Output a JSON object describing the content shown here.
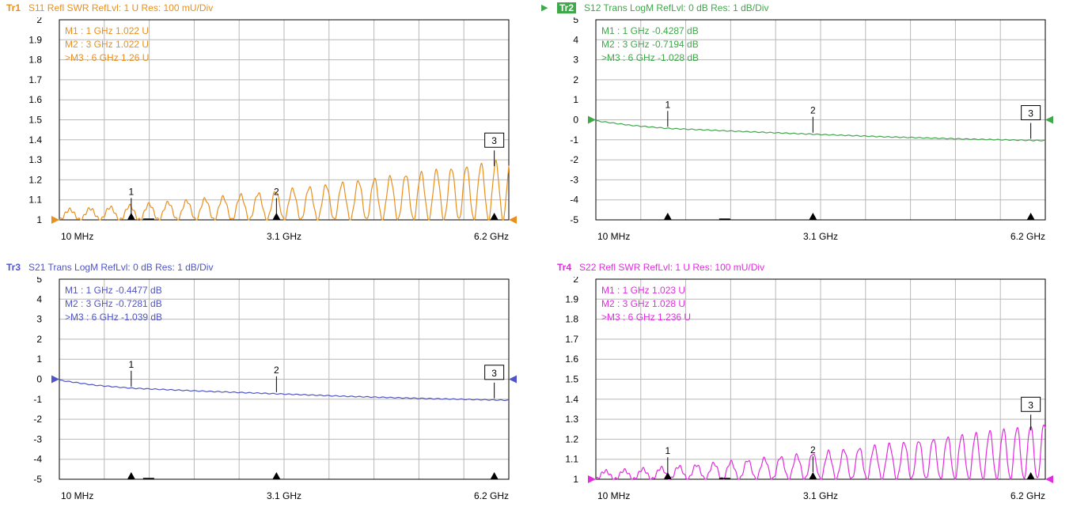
{
  "colors": {
    "grid": "#b8b8b8",
    "frame": "#000000",
    "axis_text": "#000000",
    "tr1": "#e8901e",
    "tr2": "#3fa84a",
    "tr3": "#4f54c8",
    "tr4": "#e32ce0"
  },
  "traces": [
    {
      "id": "tr1",
      "tag": "Tr1",
      "active": false,
      "header": "S11 Refl SWR RefLvl: 1  U Res: 100 mU/Div",
      "y_ticks": [
        "2",
        "1.9",
        "1.8",
        "1.7",
        "1.6",
        "1.5",
        "1.4",
        "1.3",
        "1.2",
        "1.1",
        "1"
      ],
      "x_ticks": [
        "10 MHz",
        "3.1 GHz",
        "6.2 GHz"
      ],
      "markers": [
        {
          "label": "M1  :   1 GHz  1.022  U",
          "num": "1",
          "boxed": false
        },
        {
          "label": "M2  :   3 GHz  1.022  U",
          "num": "2",
          "boxed": false
        },
        {
          "label": ">M3  :   6 GHz  1.26   U",
          "num": "3",
          "boxed": true
        }
      ]
    },
    {
      "id": "tr2",
      "tag": "Tr2",
      "active": true,
      "header": "S12 Trans LogM RefLvl: 0  dB Res: 1  dB/Div",
      "y_ticks": [
        "5",
        "4",
        "3",
        "2",
        "1",
        "0",
        "-1",
        "-2",
        "-3",
        "-4",
        "-5"
      ],
      "x_ticks": [
        "10 MHz",
        "3.1 GHz",
        "6.2 GHz"
      ],
      "markers": [
        {
          "label": "M1  :   1 GHz  -0.4287  dB",
          "num": "1",
          "boxed": false
        },
        {
          "label": "M2  :   3 GHz  -0.7194  dB",
          "num": "2",
          "boxed": false
        },
        {
          "label": ">M3  :   6 GHz  -1.028   dB",
          "num": "3",
          "boxed": true
        }
      ]
    },
    {
      "id": "tr3",
      "tag": "Tr3",
      "active": false,
      "header": "S21 Trans LogM RefLvl: 0  dB Res: 1  dB/Div",
      "y_ticks": [
        "5",
        "4",
        "3",
        "2",
        "1",
        "0",
        "-1",
        "-2",
        "-3",
        "-4",
        "-5"
      ],
      "x_ticks": [
        "10 MHz",
        "3.1 GHz",
        "6.2 GHz"
      ],
      "markers": [
        {
          "label": "M1  :   1 GHz  -0.4477  dB",
          "num": "1",
          "boxed": false
        },
        {
          "label": "M2  :   3 GHz  -0.7281  dB",
          "num": "2",
          "boxed": false
        },
        {
          "label": ">M3  :   6 GHz  -1.039   dB",
          "num": "3",
          "boxed": true
        }
      ]
    },
    {
      "id": "tr4",
      "tag": "Tr4",
      "active": false,
      "header": "S22 Refl SWR RefLvl: 1  U Res: 100 mU/Div",
      "y_ticks": [
        "2",
        "1.9",
        "1.8",
        "1.7",
        "1.6",
        "1.5",
        "1.4",
        "1.3",
        "1.2",
        "1.1",
        "1"
      ],
      "x_ticks": [
        "10 MHz",
        "3.1 GHz",
        "6.2 GHz"
      ],
      "markers": [
        {
          "label": "M1  :   1 GHz  1.023  U",
          "num": "1",
          "boxed": false
        },
        {
          "label": "M2  :   3 GHz  1.028  U",
          "num": "2",
          "boxed": false
        },
        {
          "label": ">M3  :   6 GHz  1.236  U",
          "num": "3",
          "boxed": true
        }
      ]
    }
  ],
  "chart_data": [
    {
      "type": "line",
      "title": "S11 Refl SWR RefLvl: 1  U Res: 100 mU/Div",
      "xlabel": "",
      "ylabel": "",
      "xlim": [
        0.01,
        6.2
      ],
      "ylim": [
        1,
        2
      ],
      "x_unit": "GHz",
      "y_unit": "U",
      "grid": true,
      "series": [
        {
          "name": "S11",
          "shape": "ripple",
          "baseline_start": 1.0,
          "baseline_end": 1.0,
          "envelope_start": 0.05,
          "envelope_end": 0.3,
          "cycles": 24,
          "markers": [
            {
              "x": 1,
              "y": 1.022
            },
            {
              "x": 3,
              "y": 1.022
            },
            {
              "x": 6,
              "y": 1.26
            }
          ]
        }
      ]
    },
    {
      "type": "line",
      "title": "S12 Trans LogM RefLvl: 0  dB Res: 1  dB/Div",
      "xlabel": "",
      "ylabel": "",
      "xlim": [
        0.01,
        6.2
      ],
      "ylim": [
        -5,
        5
      ],
      "x_unit": "GHz",
      "y_unit": "dB",
      "grid": true,
      "series": [
        {
          "name": "S12",
          "shape": "smooth",
          "points": [
            [
              0.01,
              -0.05
            ],
            [
              0.5,
              -0.28
            ],
            [
              1,
              -0.4287
            ],
            [
              2,
              -0.58
            ],
            [
              3,
              -0.7194
            ],
            [
              4,
              -0.85
            ],
            [
              5,
              -0.95
            ],
            [
              6,
              -1.028
            ],
            [
              6.2,
              -1.04
            ]
          ],
          "markers": [
            {
              "x": 1,
              "y": -0.4287
            },
            {
              "x": 3,
              "y": -0.7194
            },
            {
              "x": 6,
              "y": -1.028
            }
          ]
        }
      ]
    },
    {
      "type": "line",
      "title": "S21 Trans LogM RefLvl: 0  dB Res: 1  dB/Div",
      "xlabel": "",
      "ylabel": "",
      "xlim": [
        0.01,
        6.2
      ],
      "ylim": [
        -5,
        5
      ],
      "x_unit": "GHz",
      "y_unit": "dB",
      "grid": true,
      "series": [
        {
          "name": "S21",
          "shape": "smooth",
          "points": [
            [
              0.01,
              -0.05
            ],
            [
              0.5,
              -0.3
            ],
            [
              1,
              -0.4477
            ],
            [
              2,
              -0.6
            ],
            [
              3,
              -0.7281
            ],
            [
              4,
              -0.86
            ],
            [
              5,
              -0.96
            ],
            [
              6,
              -1.039
            ],
            [
              6.2,
              -1.05
            ]
          ],
          "markers": [
            {
              "x": 1,
              "y": -0.4477
            },
            {
              "x": 3,
              "y": -0.7281
            },
            {
              "x": 6,
              "y": -1.039
            }
          ]
        }
      ]
    },
    {
      "type": "line",
      "title": "S22 Refl SWR RefLvl: 1  U Res: 100 mU/Div",
      "xlabel": "",
      "ylabel": "",
      "xlim": [
        0.01,
        6.2
      ],
      "ylim": [
        1,
        2
      ],
      "x_unit": "GHz",
      "y_unit": "U",
      "grid": true,
      "series": [
        {
          "name": "S22",
          "shape": "ripple",
          "baseline_start": 1.0,
          "baseline_end": 1.0,
          "envelope_start": 0.04,
          "envelope_end": 0.28,
          "cycles": 26,
          "markers": [
            {
              "x": 1,
              "y": 1.023
            },
            {
              "x": 3,
              "y": 1.028
            },
            {
              "x": 6,
              "y": 1.236
            }
          ]
        }
      ]
    }
  ]
}
